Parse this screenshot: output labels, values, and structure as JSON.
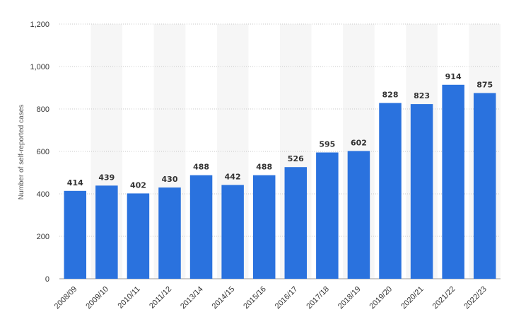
{
  "colors": {
    "bar": "#2a72de",
    "band": "#f6f6f6",
    "grid": "#c8c8c8",
    "text": "#333333",
    "axis_title": "#555555"
  },
  "chart_data": {
    "type": "bar",
    "title": "",
    "xlabel": "",
    "ylabel": "Number of self-reported cases",
    "ylim": [
      0,
      1200
    ],
    "y_ticks": [
      "0",
      "200",
      "400",
      "600",
      "800",
      "1,000",
      "1,200"
    ],
    "y_tick_values": [
      0,
      200,
      400,
      600,
      800,
      1000,
      1200
    ],
    "grid": true,
    "categories": [
      "2008/09",
      "2009/10",
      "2010/11",
      "2011/12",
      "2013/14",
      "2014/15",
      "2015/16",
      "2016/17",
      "2017/18",
      "2018/19",
      "2019/20",
      "2020/21",
      "2021/22",
      "2022/23"
    ],
    "values": [
      414,
      439,
      402,
      430,
      488,
      442,
      488,
      526,
      595,
      602,
      828,
      823,
      914,
      875
    ],
    "data_labels": [
      "414",
      "439",
      "402",
      "430",
      "488",
      "442",
      "488",
      "526",
      "595",
      "602",
      "828",
      "823",
      "914",
      "875"
    ]
  }
}
